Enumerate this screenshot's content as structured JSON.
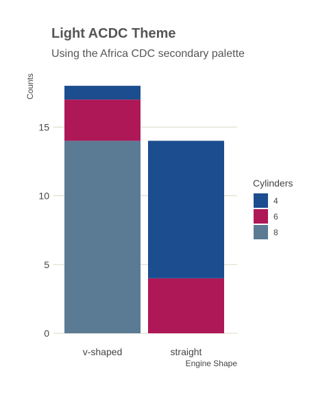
{
  "chart_data": {
    "type": "bar",
    "stacked": true,
    "title": "Light ACDC Theme",
    "subtitle": "Using the Africa CDC secondary palette",
    "xlabel": "Engine Shape",
    "ylabel": "Counts",
    "categories": [
      "v-shaped",
      "straight"
    ],
    "series": [
      {
        "name": "8",
        "color": "#5b7a94",
        "values": [
          14,
          0
        ]
      },
      {
        "name": "6",
        "color": "#ae1857",
        "values": [
          3,
          4
        ]
      },
      {
        "name": "4",
        "color": "#1b4d8f",
        "values": [
          1,
          10
        ]
      }
    ],
    "ylim": [
      0,
      18
    ],
    "yticks": [
      0,
      5,
      10,
      15
    ],
    "grid": true,
    "gridline_color": "#d9d9c3",
    "legend": {
      "title": "Cylinders",
      "placement": "right",
      "order": [
        "4",
        "6",
        "8"
      ]
    }
  }
}
